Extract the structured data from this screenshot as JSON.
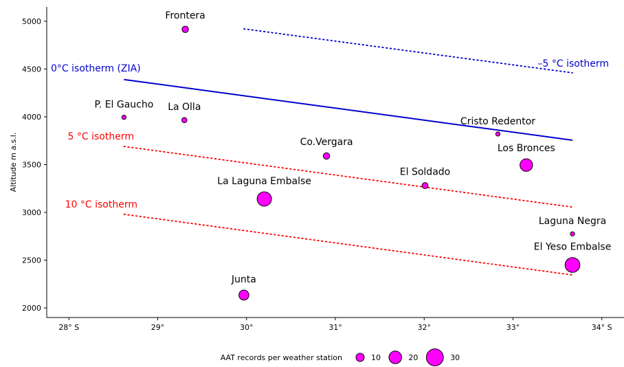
{
  "chart_data": {
    "type": "scatter",
    "ylabel": "Altitude m a.s.l.",
    "xlim": [
      27.75,
      34.25
    ],
    "ylim": [
      1900,
      5150
    ],
    "x_ticks": [
      {
        "value": 28,
        "label": "28° S"
      },
      {
        "value": 29,
        "label": "29°"
      },
      {
        "value": 30,
        "label": "30°"
      },
      {
        "value": 31,
        "label": "31°"
      },
      {
        "value": 32,
        "label": "32°"
      },
      {
        "value": 33,
        "label": "33°"
      },
      {
        "value": 34,
        "label": "34° S"
      }
    ],
    "y_ticks": [
      {
        "value": 2000,
        "label": "2000"
      },
      {
        "value": 2500,
        "label": "2500"
      },
      {
        "value": 3000,
        "label": "3000"
      },
      {
        "value": 3500,
        "label": "3500"
      },
      {
        "value": 4000,
        "label": "4000"
      },
      {
        "value": 4500,
        "label": "4500"
      },
      {
        "value": 5000,
        "label": "5000"
      }
    ],
    "stations": [
      {
        "name": "Frontera",
        "lat": 29.31,
        "alt": 4915,
        "records": 6
      },
      {
        "name": "P. El Gaucho",
        "lat": 28.62,
        "alt": 3995,
        "records": 1
      },
      {
        "name": "La Olla",
        "lat": 29.3,
        "alt": 3965,
        "records": 3
      },
      {
        "name": "Co.Vergara",
        "lat": 30.9,
        "alt": 3590,
        "records": 6
      },
      {
        "name": "Cristo Redentor",
        "lat": 32.83,
        "alt": 3820,
        "records": 1
      },
      {
        "name": "Los Bronces",
        "lat": 33.15,
        "alt": 3495,
        "records": 20
      },
      {
        "name": "El Soldado",
        "lat": 32.01,
        "alt": 3280,
        "records": 5
      },
      {
        "name": "La Laguna Embalse",
        "lat": 30.2,
        "alt": 3140,
        "records": 24
      },
      {
        "name": "Laguna Negra",
        "lat": 33.67,
        "alt": 2775,
        "records": 1
      },
      {
        "name": "El Yeso Embalse",
        "lat": 33.67,
        "alt": 2450,
        "records": 25
      },
      {
        "name": "Junta",
        "lat": 29.97,
        "alt": 2135,
        "records": 14
      }
    ],
    "isotherms": [
      {
        "label": "–5 °C isotherm",
        "color": "#0000cc",
        "style": "dotted",
        "x": [
          29.97,
          33.67
        ],
        "y": [
          4920,
          4460
        ]
      },
      {
        "label": "0°C isotherm (ZIA)",
        "color": "#0000cc",
        "style": "solid",
        "x": [
          28.62,
          33.67
        ],
        "y": [
          4390,
          3755
        ]
      },
      {
        "label": "5 °C isotherm",
        "color": "#ff0000",
        "style": "dotted",
        "x": [
          28.62,
          33.67
        ],
        "y": [
          3690,
          3055
        ]
      },
      {
        "label": "10 °C isotherm",
        "color": "#ff0000",
        "style": "dotted",
        "x": [
          28.62,
          33.67
        ],
        "y": [
          2980,
          2345
        ]
      }
    ],
    "legend": {
      "title": "AAT records per weather station",
      "sizes": [
        10,
        20,
        30
      ],
      "placement": "bottom"
    },
    "marker_color": "#ff00ff",
    "grid": false
  }
}
